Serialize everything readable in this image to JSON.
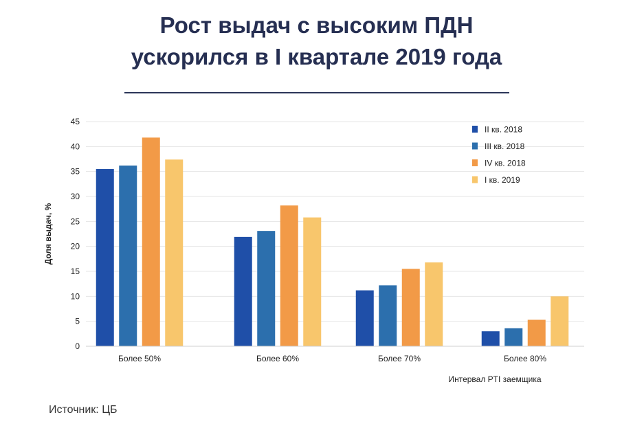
{
  "title_line1": "Рост выдач с высоким ПДН",
  "title_line2": "ускорился в I квартале 2019 года",
  "source": "Источник: ЦБ",
  "chart_data": {
    "type": "bar",
    "categories": [
      "Более 50%",
      "Более 60%",
      "Более 70%",
      "Более 80%"
    ],
    "series": [
      {
        "name": "II кв. 2018",
        "color": "#1f4fa8",
        "values": [
          35.5,
          21.9,
          11.2,
          3.0
        ]
      },
      {
        "name": "III кв. 2018",
        "color": "#2c6fad",
        "values": [
          36.2,
          23.1,
          12.2,
          3.6
        ]
      },
      {
        "name": "IV кв. 2018",
        "color": "#f29a47",
        "values": [
          41.8,
          28.2,
          15.5,
          5.3
        ]
      },
      {
        "name": "I кв. 2019",
        "color": "#f8c66c",
        "values": [
          37.4,
          25.8,
          16.8,
          10.0
        ]
      }
    ],
    "ylabel": "Доля выдач, %",
    "xlabel": "Интервал PTI заемщика",
    "ylim": [
      0,
      45
    ],
    "yticks": [
      0,
      5,
      10,
      15,
      20,
      25,
      30,
      35,
      40,
      45
    ],
    "grid": true,
    "legend_position": "top-right"
  }
}
